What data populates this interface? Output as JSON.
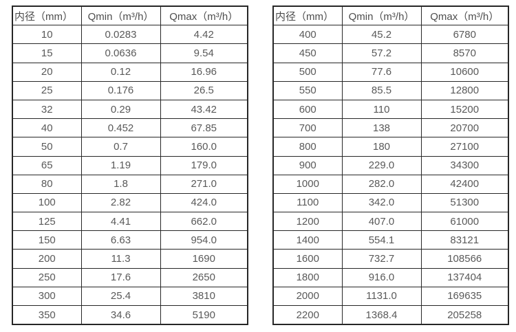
{
  "colors": {
    "background": "#ffffff",
    "border": "#262626",
    "text": "#595959",
    "header_text": "#4d4d4d"
  },
  "columns": {
    "diameter": "内径（mm）",
    "qmin": "Qmin（m³/h）",
    "qmax": "Qmax（m³/h）"
  },
  "tables": [
    {
      "name": "flow-rate-table-left",
      "rows": [
        [
          "10",
          "0.0283",
          "4.42"
        ],
        [
          "15",
          "0.0636",
          "9.54"
        ],
        [
          "20",
          "0.12",
          "16.96"
        ],
        [
          "25",
          "0.176",
          "26.5"
        ],
        [
          "32",
          "0.29",
          "43.42"
        ],
        [
          "40",
          "0.452",
          "67.85"
        ],
        [
          "50",
          "0.7",
          "160.0"
        ],
        [
          "65",
          "1.19",
          "179.0"
        ],
        [
          "80",
          "1.8",
          "271.0"
        ],
        [
          "100",
          "2.82",
          "424.0"
        ],
        [
          "125",
          "4.41",
          "662.0"
        ],
        [
          "150",
          "6.63",
          "954.0"
        ],
        [
          "200",
          "11.3",
          "1690"
        ],
        [
          "250",
          "17.6",
          "2650"
        ],
        [
          "300",
          "25.4",
          "3810"
        ],
        [
          "350",
          "34.6",
          "5190"
        ]
      ]
    },
    {
      "name": "flow-rate-table-right",
      "rows": [
        [
          "400",
          "45.2",
          "6780"
        ],
        [
          "450",
          "57.2",
          "8570"
        ],
        [
          "500",
          "77.6",
          "10600"
        ],
        [
          "550",
          "85.5",
          "12800"
        ],
        [
          "600",
          "110",
          "15200"
        ],
        [
          "700",
          "138",
          "20700"
        ],
        [
          "800",
          "180",
          "27100"
        ],
        [
          "900",
          "229.0",
          "34300"
        ],
        [
          "1000",
          "282.0",
          "42400"
        ],
        [
          "1100",
          "342.0",
          "51300"
        ],
        [
          "1200",
          "407.0",
          "61000"
        ],
        [
          "1400",
          "554.1",
          "83121"
        ],
        [
          "1600",
          "732.7",
          "108566"
        ],
        [
          "1800",
          "916.0",
          "137404"
        ],
        [
          "2000",
          "1131.0",
          "169635"
        ],
        [
          "2200",
          "1368.4",
          "205258"
        ]
      ]
    }
  ]
}
